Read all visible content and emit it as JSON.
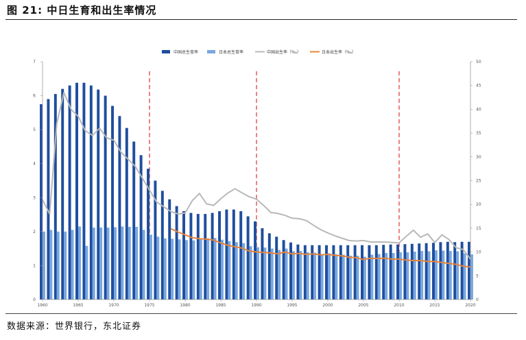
{
  "figure": {
    "title": "图 21: 中日生育和出生率情况",
    "source": "数据来源：世界银行，东北证券"
  },
  "colors": {
    "china_fertility": "#1f4e9e",
    "japan_fertility": "#79a7e0",
    "china_birth_rate": "#b8b8b8",
    "japan_birth_rate": "#e8843a",
    "marker_lines": "#e03030"
  },
  "chart_data": {
    "type": "bar",
    "title": "",
    "xlabel": "",
    "ylabel": "",
    "legend_position": "top-center",
    "grid": false,
    "years": [
      1960,
      1961,
      1962,
      1963,
      1964,
      1965,
      1966,
      1967,
      1968,
      1969,
      1970,
      1971,
      1972,
      1973,
      1974,
      1975,
      1976,
      1977,
      1978,
      1979,
      1980,
      1981,
      1982,
      1983,
      1984,
      1985,
      1986,
      1987,
      1988,
      1989,
      1990,
      1991,
      1992,
      1993,
      1994,
      1995,
      1996,
      1997,
      1998,
      1999,
      2000,
      2001,
      2002,
      2003,
      2004,
      2005,
      2006,
      2007,
      2008,
      2009,
      2010,
      2011,
      2012,
      2013,
      2014,
      2015,
      2016,
      2017,
      2018,
      2019,
      2020
    ],
    "x_tick_labels": [
      "1960",
      "1965",
      "1970",
      "1975",
      "1980",
      "1985",
      "1990",
      "1995",
      "2000",
      "2005",
      "2010",
      "2015",
      "2020"
    ],
    "y_left_range": [
      0,
      7
    ],
    "y_left_ticks": [
      "0",
      "1",
      "2",
      "3",
      "4",
      "5",
      "6",
      "7"
    ],
    "y_right_range": [
      0,
      50
    ],
    "y_right_ticks": [
      "0",
      "5",
      "10",
      "15",
      "20",
      "25",
      "30",
      "35",
      "40",
      "45",
      "50"
    ],
    "marker_years": [
      1975,
      1990,
      2010
    ],
    "series": [
      {
        "name": "中国总生育率",
        "kind": "bar",
        "axis": "left",
        "values": [
          5.75,
          5.9,
          6.05,
          6.2,
          6.3,
          6.38,
          6.38,
          6.3,
          6.18,
          6.0,
          5.7,
          5.4,
          5.05,
          4.65,
          4.25,
          3.85,
          3.5,
          3.2,
          2.95,
          2.75,
          2.6,
          2.55,
          2.52,
          2.52,
          2.55,
          2.6,
          2.65,
          2.65,
          2.6,
          2.45,
          2.3,
          2.1,
          1.95,
          1.85,
          1.75,
          1.68,
          1.62,
          1.6,
          1.6,
          1.6,
          1.6,
          1.6,
          1.6,
          1.6,
          1.6,
          1.6,
          1.6,
          1.6,
          1.61,
          1.62,
          1.62,
          1.63,
          1.64,
          1.65,
          1.66,
          1.67,
          1.69,
          1.7,
          1.69,
          1.7,
          1.7
        ]
      },
      {
        "name": "日本总生育率",
        "kind": "bar",
        "axis": "left",
        "values": [
          2.0,
          2.05,
          2.0,
          2.0,
          2.05,
          2.15,
          1.58,
          2.12,
          2.12,
          2.12,
          2.13,
          2.15,
          2.14,
          2.14,
          2.05,
          1.91,
          1.85,
          1.8,
          1.79,
          1.77,
          1.75,
          1.74,
          1.77,
          1.8,
          1.81,
          1.76,
          1.72,
          1.69,
          1.66,
          1.57,
          1.54,
          1.53,
          1.5,
          1.46,
          1.5,
          1.42,
          1.43,
          1.39,
          1.38,
          1.34,
          1.36,
          1.33,
          1.32,
          1.29,
          1.29,
          1.26,
          1.32,
          1.34,
          1.37,
          1.37,
          1.39,
          1.39,
          1.41,
          1.43,
          1.42,
          1.45,
          1.44,
          1.43,
          1.42,
          1.36,
          1.33
        ]
      },
      {
        "name": "中国出生率（‰）",
        "kind": "line",
        "axis": "right",
        "values": [
          21,
          18,
          37,
          43.5,
          40,
          38.5,
          35.5,
          34.5,
          36,
          34,
          33.5,
          31,
          29.5,
          28,
          25.5,
          23,
          20.5,
          19.5,
          18.5,
          18,
          18.2,
          20.8,
          22.3,
          20.1,
          19.8,
          21.2,
          22.4,
          23.3,
          22.4,
          21.6,
          21.1,
          19.8,
          18.3,
          18.1,
          17.7,
          17.1,
          17,
          16.6,
          15.6,
          14.7,
          14,
          13.4,
          12.9,
          12.4,
          12.3,
          12.4,
          12.1,
          12.1,
          12.1,
          12,
          11.9,
          13.3,
          14.6,
          13.1,
          13.8,
          12,
          13.6,
          12.6,
          10.9,
          10.5,
          8.5
        ]
      },
      {
        "name": "日本出生率（‰）",
        "kind": "line",
        "axis": "right",
        "values": [
          null,
          null,
          null,
          null,
          null,
          null,
          null,
          null,
          null,
          null,
          null,
          null,
          null,
          null,
          null,
          null,
          null,
          null,
          14.9,
          14.2,
          13.6,
          13.0,
          12.8,
          12.7,
          12.5,
          11.9,
          11.4,
          11.1,
          10.8,
          10.2,
          10.0,
          9.9,
          9.8,
          9.6,
          10.0,
          9.6,
          9.7,
          9.5,
          9.6,
          9.4,
          9.5,
          9.3,
          9.2,
          8.9,
          8.8,
          8.4,
          8.7,
          8.6,
          8.7,
          8.5,
          8.5,
          8.3,
          8.2,
          8.2,
          8.0,
          8.0,
          7.8,
          7.6,
          7.4,
          7.0,
          6.8
        ]
      }
    ]
  }
}
